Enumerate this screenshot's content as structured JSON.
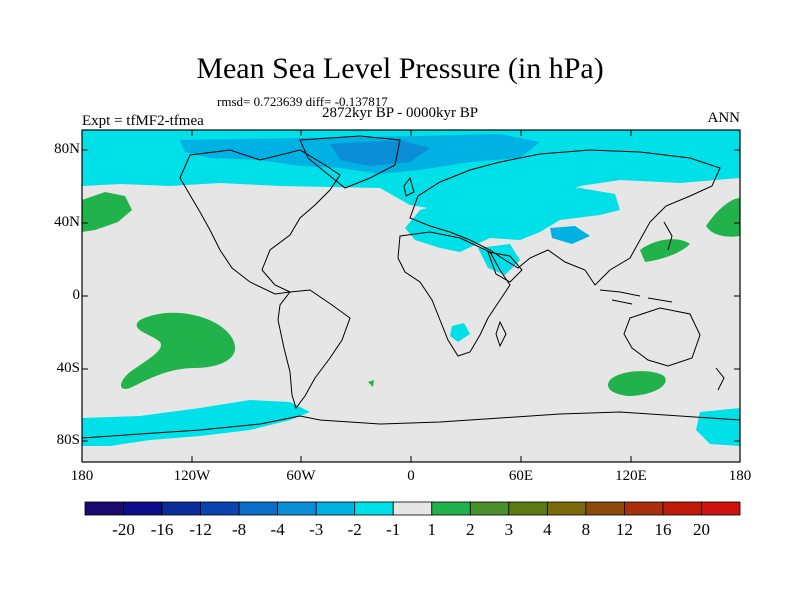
{
  "title": "Mean Sea Level Pressure (in hPa)",
  "stats": "rmsd= 0.723639 diff= -0.137817",
  "period": "2872kyr BP - 0000kyr BP",
  "experiment": "Expt = tfMF2-tfmea",
  "season": "ANN",
  "y_ticks": [
    "80N",
    "40N",
    "0",
    "40S",
    "80S"
  ],
  "x_ticks": [
    "180",
    "120W",
    "60W",
    "0",
    "60E",
    "120E",
    "180"
  ],
  "colorbar": {
    "labels": [
      "-20",
      "-16",
      "-12",
      "-8",
      "-4",
      "-3",
      "-2",
      "-1",
      "1",
      "2",
      "3",
      "4",
      "8",
      "12",
      "16",
      "20"
    ],
    "colors": [
      "#1a0a6e",
      "#0b0d8c",
      "#0a2d9a",
      "#0b44b0",
      "#0a6fc8",
      "#0a8fd6",
      "#00b2e3",
      "#00e0e8",
      "#e6e6e6",
      "#22b24c",
      "#4a8f2a",
      "#5e7a12",
      "#7a6a0c",
      "#8c4a0a",
      "#a8300a",
      "#c01a0a",
      "#d0120e"
    ]
  },
  "map_colors": {
    "background": "#e6e6e6",
    "neg_1": "#00e0e8",
    "neg_2": "#00b2e3",
    "neg_3": "#0a8fd6",
    "pos_1": "#22b24c",
    "coast": "#000000"
  }
}
